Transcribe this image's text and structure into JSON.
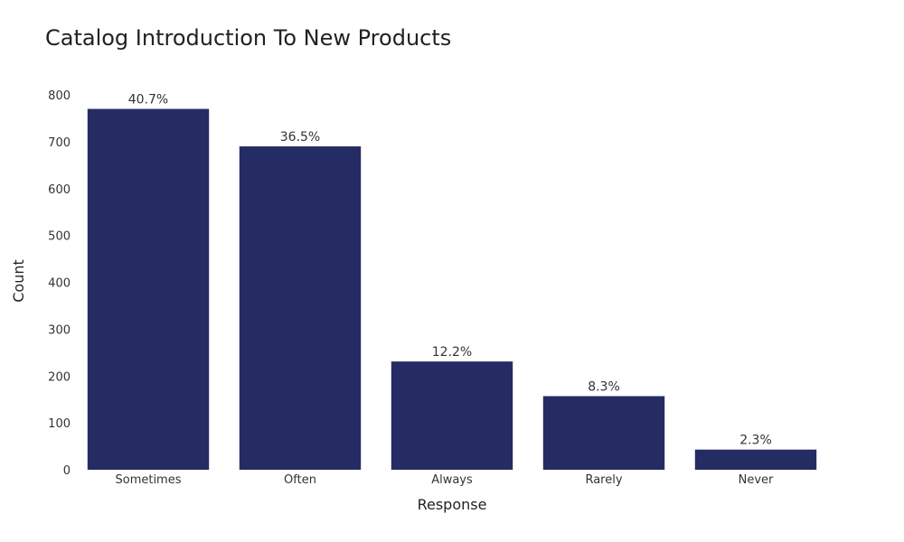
{
  "chart_data": {
    "type": "bar",
    "title": "Catalog Introduction To New Products",
    "xlabel": "Response",
    "ylabel": "Count",
    "categories": [
      "Sometimes",
      "Often",
      "Always",
      "Rarely",
      "Never"
    ],
    "values": [
      770,
      690,
      231,
      157,
      43
    ],
    "data_labels": [
      "40.7%",
      "36.5%",
      "12.2%",
      "8.3%",
      "2.3%"
    ],
    "ylim": [
      0,
      800
    ],
    "yticks": [
      0,
      100,
      200,
      300,
      400,
      500,
      600,
      700,
      800
    ],
    "ytick_labels": [
      "0",
      "100",
      "200",
      "300",
      "400",
      "500",
      "600",
      "700",
      "800"
    ],
    "bar_color": "#252b63",
    "grid": false,
    "legend": "none"
  }
}
